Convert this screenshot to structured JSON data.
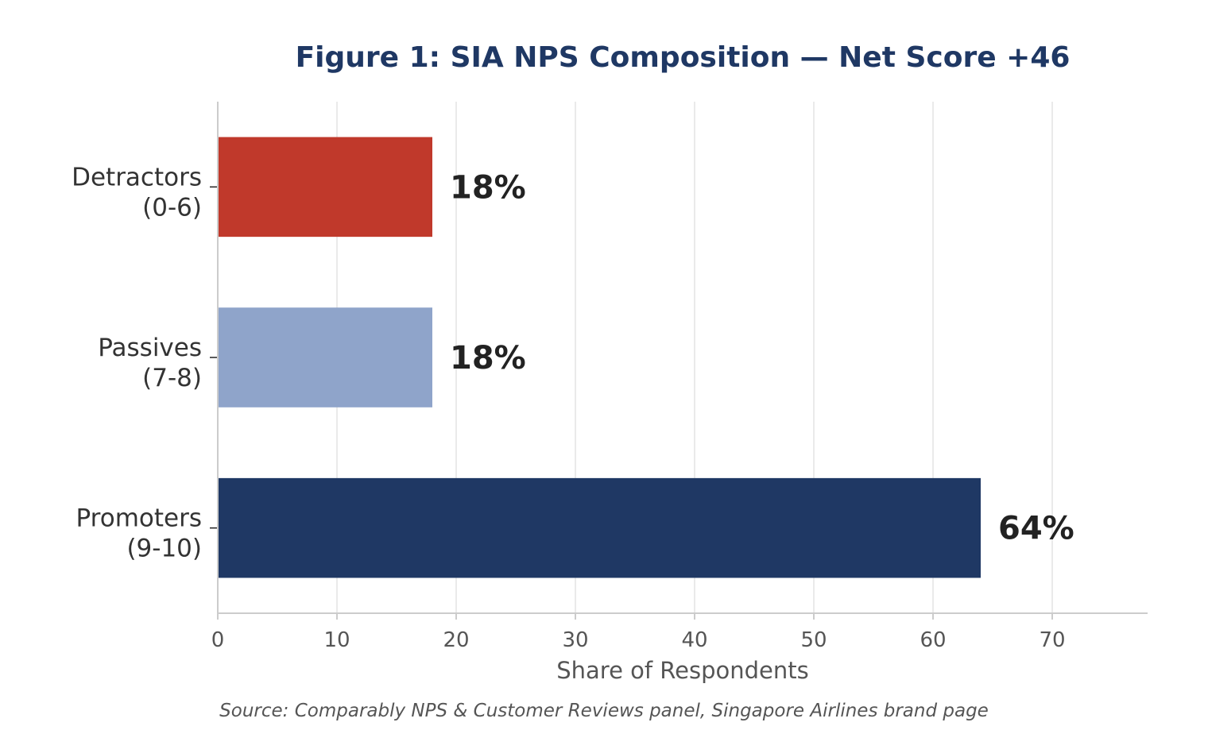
{
  "chart_data": {
    "type": "bar",
    "orientation": "horizontal",
    "title": "Figure 1: SIA NPS Composition — Net Score +46",
    "xlabel": "Share of Respondents",
    "ylabel": "",
    "xlim": [
      0,
      78
    ],
    "xticks": [
      0,
      10,
      20,
      30,
      40,
      50,
      60,
      70
    ],
    "grid": "vertical",
    "categories": [
      {
        "line1": "Detractors",
        "line2": "(0-6)"
      },
      {
        "line1": "Passives",
        "line2": "(7-8)"
      },
      {
        "line1": "Promoters",
        "line2": "(9-10)"
      }
    ],
    "values": [
      18,
      18,
      64
    ],
    "value_labels": [
      "18%",
      "18%",
      "64%"
    ],
    "colors": [
      "#c0392b",
      "#8fa4ca",
      "#1f3864"
    ],
    "source": "Source: Comparably NPS & Customer Reviews panel, Singapore Airlines brand page"
  }
}
